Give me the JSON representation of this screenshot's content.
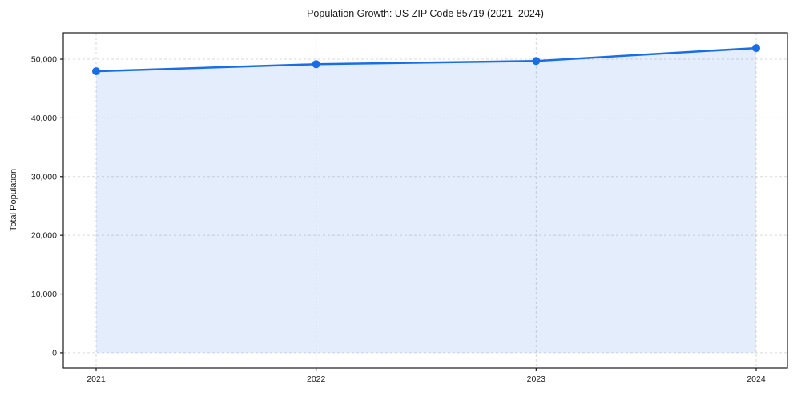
{
  "figure": {
    "title": "Population Growth: US ZIP Code 85719 (2021–2024)",
    "ylabel": "Total Population"
  },
  "chart_data": {
    "type": "area",
    "title": "Population Growth: US ZIP Code 85719 (2021–2024)",
    "xlabel": "",
    "ylabel": "Total Population",
    "categories": [
      "2021",
      "2022",
      "2023",
      "2024"
    ],
    "series": [
      {
        "name": "Total Population",
        "values": [
          47950,
          49150,
          49700,
          51900
        ]
      }
    ],
    "ylim": [
      -2600,
      54500
    ],
    "yticks": [
      0,
      10000,
      20000,
      30000,
      40000,
      50000
    ],
    "ytick_labels": [
      "0",
      "10,000",
      "20,000",
      "30,000",
      "40,000",
      "50,000"
    ],
    "grid": true,
    "grid_style": "dashed",
    "legend_position": "none",
    "colors": {
      "line": "#1a6ee5",
      "marker": "#1a6ee5",
      "fill": "rgba(26,110,229,0.12)",
      "grid": "#d9d9d9",
      "spine": "#1a1a1a",
      "tick_text": "#1a1a1a"
    }
  }
}
